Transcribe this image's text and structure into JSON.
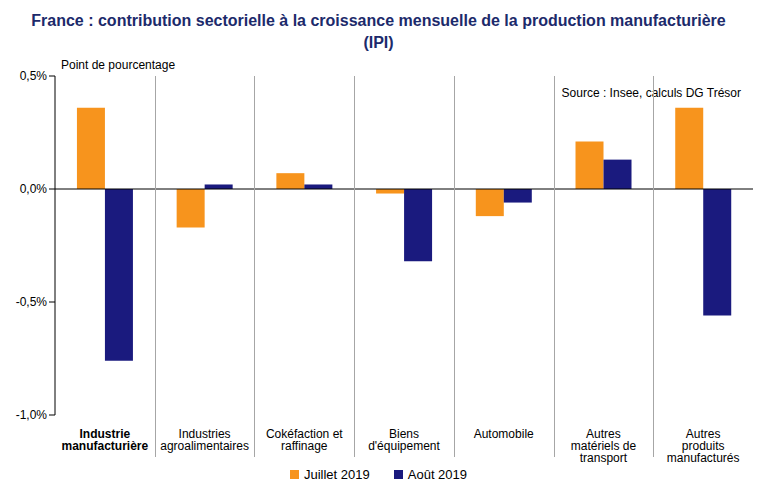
{
  "chart_data": {
    "type": "bar",
    "title": "France : contribution sectorielle à la croissance mensuelle de la production manufacturière (IPI)",
    "y_label": "Point de pourcentage",
    "annotation": "Source : Insee, calculs DG Trésor",
    "categories": [
      "Industrie manufacturière",
      "Industries agroalimentaires",
      "Cokéfaction et raffinage",
      "Biens d'équipement",
      "Automobile",
      "Autres matériels de transport",
      "Autres produits manufacturés"
    ],
    "series": [
      {
        "name": "Juillet 2019",
        "color": "#f7941d",
        "values": [
          0.36,
          -0.17,
          0.07,
          -0.02,
          -0.12,
          0.21,
          0.36
        ]
      },
      {
        "name": "Août 2019",
        "color": "#1a1a7e",
        "values": [
          -0.76,
          0.02,
          0.02,
          -0.32,
          -0.06,
          0.13,
          -0.56
        ]
      }
    ],
    "ylim": [
      -1,
      0.5
    ],
    "yticks": [
      {
        "value": -1,
        "label": "-1,0%"
      },
      {
        "value": -0.5,
        "label": "-0,5%"
      },
      {
        "value": 0,
        "label": "0,0%"
      },
      {
        "value": 0.5,
        "label": "0,5%"
      }
    ],
    "grid": false,
    "legend": "bottom"
  }
}
